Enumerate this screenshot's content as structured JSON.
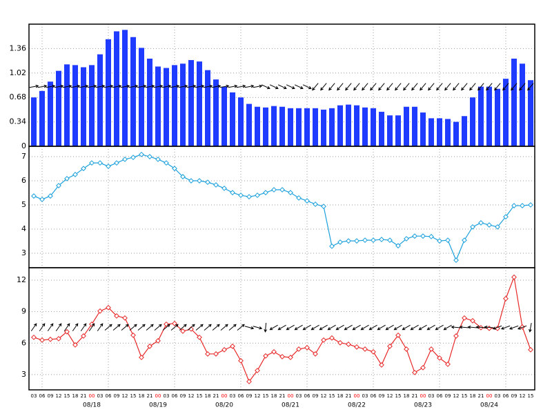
{
  "chart_data": [
    {
      "type": "bar",
      "color": "#1f3bff",
      "ylim": [
        0,
        1.7
      ],
      "yticks": [
        0,
        0.34,
        0.68,
        1.02,
        1.36
      ],
      "grid": true,
      "values": [
        0.68,
        0.77,
        0.9,
        1.05,
        1.14,
        1.13,
        1.1,
        1.13,
        1.28,
        1.49,
        1.6,
        1.62,
        1.52,
        1.37,
        1.22,
        1.11,
        1.09,
        1.13,
        1.15,
        1.2,
        1.18,
        1.06,
        0.93,
        0.83,
        0.75,
        0.68,
        0.59,
        0.55,
        0.54,
        0.56,
        0.55,
        0.53,
        0.53,
        0.53,
        0.53,
        0.51,
        0.53,
        0.57,
        0.58,
        0.57,
        0.54,
        0.53,
        0.48,
        0.43,
        0.43,
        0.55,
        0.55,
        0.47,
        0.39,
        0.39,
        0.38,
        0.34,
        0.42,
        0.68,
        0.83,
        0.83,
        0.8,
        0.94,
        1.22,
        1.15,
        0.92
      ],
      "arrows": {
        "y": 0.83,
        "color": "#000000",
        "angles": [
          10,
          10,
          10,
          10,
          10,
          10,
          10,
          10,
          10,
          10,
          10,
          10,
          10,
          10,
          10,
          10,
          10,
          10,
          10,
          10,
          10,
          10,
          10,
          10,
          10,
          10,
          10,
          10,
          -25,
          -25,
          -25,
          -25,
          -25,
          -25,
          -130,
          -130,
          -130,
          -130,
          -130,
          -130,
          -130,
          -130,
          -130,
          -130,
          -130,
          -130,
          -130,
          -130,
          -130,
          -130,
          -130,
          -130,
          -130,
          -130,
          -130,
          -130,
          -130,
          -130,
          -130,
          -130,
          -130
        ]
      }
    },
    {
      "type": "line",
      "color": "#1aa0dc",
      "ylim": [
        2.4,
        7.43
      ],
      "yticks": [
        3,
        4,
        5,
        6,
        7
      ],
      "grid": true,
      "values": [
        5.37,
        5.23,
        5.37,
        5.8,
        6.09,
        6.26,
        6.51,
        6.74,
        6.74,
        6.6,
        6.74,
        6.89,
        6.97,
        7.09,
        7.0,
        6.89,
        6.74,
        6.51,
        6.17,
        6.0,
        6.0,
        5.94,
        5.83,
        5.69,
        5.51,
        5.4,
        5.34,
        5.4,
        5.51,
        5.63,
        5.63,
        5.51,
        5.29,
        5.17,
        5.03,
        4.94,
        3.29,
        3.46,
        3.51,
        3.51,
        3.54,
        3.54,
        3.57,
        3.54,
        3.31,
        3.6,
        3.71,
        3.71,
        3.69,
        3.51,
        3.54,
        2.71,
        3.54,
        4.09,
        4.26,
        4.17,
        4.09,
        4.51,
        4.97,
        4.97,
        5.0
      ]
    },
    {
      "type": "line",
      "color": "#e82828",
      "ylim": [
        1.55,
        13.18
      ],
      "yticks": [
        3,
        6,
        9,
        12
      ],
      "grid": true,
      "values": [
        6.55,
        6.29,
        6.36,
        6.42,
        7.08,
        5.83,
        6.68,
        7.8,
        9.05,
        9.38,
        8.59,
        8.39,
        6.75,
        4.64,
        5.7,
        6.22,
        7.8,
        7.87,
        7.14,
        7.34,
        6.55,
        4.97,
        4.97,
        5.37,
        5.7,
        4.32,
        2.34,
        3.39,
        4.78,
        5.17,
        4.71,
        4.64,
        5.43,
        5.57,
        4.97,
        6.29,
        6.49,
        6.03,
        5.89,
        5.63,
        5.43,
        5.17,
        3.92,
        5.7,
        6.75,
        5.43,
        3.2,
        3.66,
        5.43,
        4.58,
        3.99,
        6.68,
        8.39,
        8.13,
        7.47,
        7.41,
        7.4,
        10.24,
        12.28,
        7.54,
        5.37
      ],
      "arrows": {
        "y": 7.5,
        "color": "#000000",
        "angles": [
          55,
          55,
          55,
          55,
          55,
          55,
          55,
          55,
          55,
          40,
          40,
          40,
          40,
          40,
          40,
          40,
          40,
          40,
          40,
          40,
          40,
          40,
          40,
          40,
          40,
          40,
          -15,
          -15,
          -95,
          -150,
          -150,
          -150,
          -150,
          -150,
          -150,
          -150,
          -150,
          -150,
          -150,
          -150,
          -150,
          -150,
          -150,
          -150,
          -150,
          -150,
          -150,
          -150,
          -150,
          -150,
          -150,
          175,
          175,
          175,
          175,
          175,
          -160,
          -160,
          -160,
          -160,
          -100
        ]
      },
      "midnight_color": "#ff0000",
      "x": [
        "03",
        "06",
        "09",
        "12",
        "15",
        "18",
        "21",
        "00",
        "03",
        "06",
        "09",
        "12",
        "15",
        "18",
        "21",
        "00",
        "03",
        "06",
        "09",
        "12",
        "15",
        "18",
        "21",
        "00",
        "03",
        "06",
        "09",
        "12",
        "15",
        "18",
        "21",
        "00",
        "03",
        "06",
        "09",
        "12",
        "15",
        "18",
        "21",
        "00",
        "03",
        "06",
        "09",
        "12",
        "15",
        "18",
        "21",
        "00",
        "03",
        "06",
        "09",
        "12",
        "15",
        "18",
        "21",
        "00",
        "03",
        "06",
        "09",
        "12",
        "15"
      ],
      "dates": [
        null,
        null,
        null,
        null,
        null,
        null,
        null,
        "08/18",
        null,
        null,
        null,
        null,
        null,
        null,
        null,
        "08/19",
        null,
        null,
        null,
        null,
        null,
        null,
        null,
        "08/20",
        null,
        null,
        null,
        null,
        null,
        null,
        null,
        "08/21",
        null,
        null,
        null,
        null,
        null,
        null,
        null,
        "08/22",
        null,
        null,
        null,
        null,
        null,
        null,
        null,
        "08/23",
        null,
        null,
        null,
        null,
        null,
        null,
        null,
        "08/24",
        null,
        null,
        null,
        null,
        null
      ]
    }
  ]
}
